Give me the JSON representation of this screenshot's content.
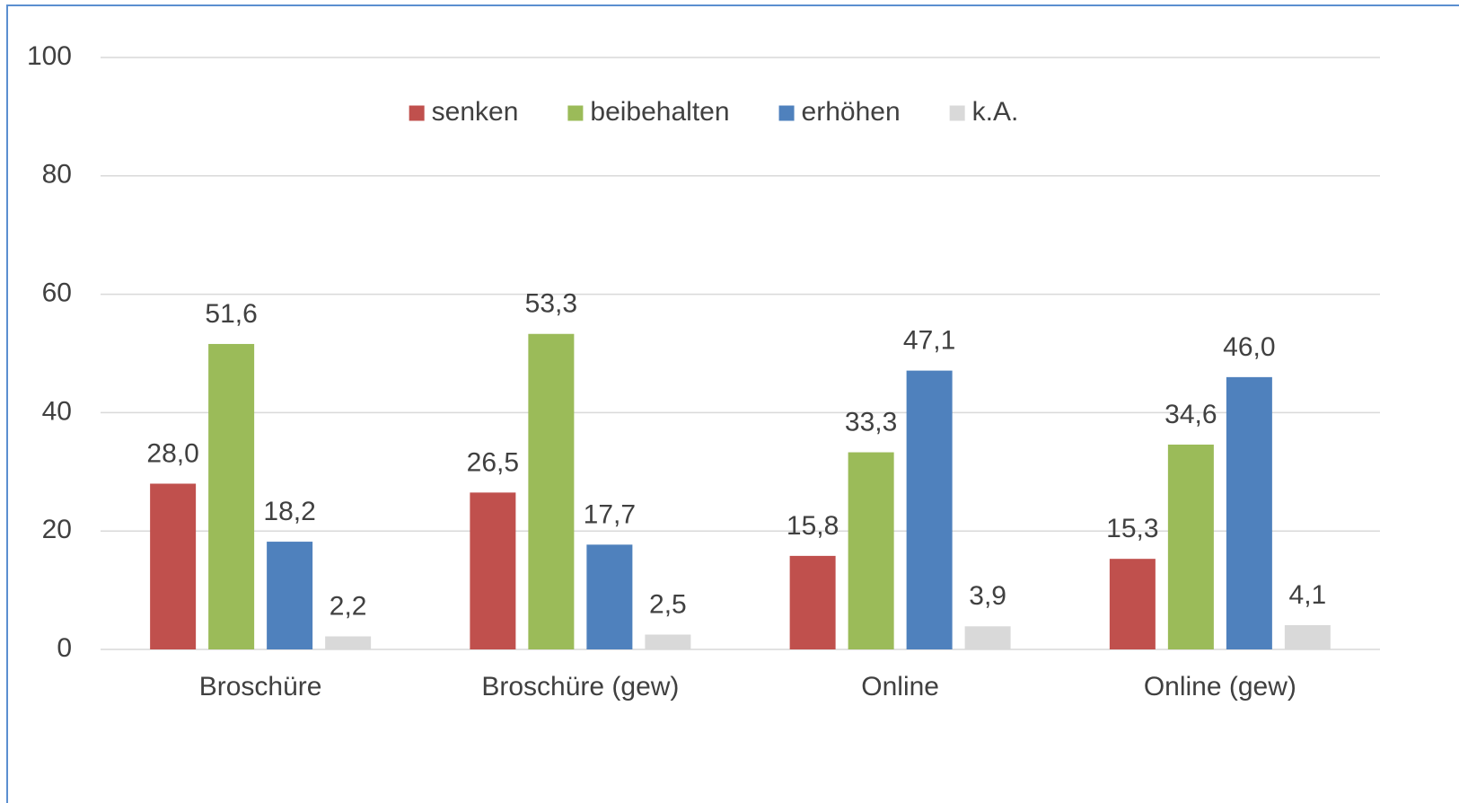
{
  "chart_data": {
    "type": "bar",
    "categories": [
      "Broschüre",
      "Broschüre (gew)",
      "Online",
      "Online (gew)"
    ],
    "series": [
      {
        "name": "senken",
        "color": "#c0504d",
        "values": [
          28.0,
          26.5,
          15.8,
          15.3
        ],
        "value_labels": [
          "28,0",
          "26,5",
          "15,8",
          "15,3"
        ]
      },
      {
        "name": "beibehalten",
        "color": "#9bbb59",
        "values": [
          51.6,
          53.3,
          33.3,
          34.6
        ],
        "value_labels": [
          "51,6",
          "53,3",
          "33,3",
          "34,6"
        ]
      },
      {
        "name": "erhöhen",
        "color": "#4f81bd",
        "values": [
          18.2,
          17.7,
          47.1,
          46.0
        ],
        "value_labels": [
          "18,2",
          "17,7",
          "47,1",
          "46,0"
        ]
      },
      {
        "name": "k.A.",
        "color": "#d9d9d9",
        "values": [
          2.2,
          2.5,
          3.9,
          4.1
        ],
        "value_labels": [
          "2,2",
          "2,5",
          "3,9",
          "4,1"
        ]
      }
    ],
    "ylim": [
      0,
      100
    ],
    "yticks": [
      0,
      20,
      40,
      60,
      80,
      100
    ],
    "grid": true,
    "legend": "top"
  }
}
